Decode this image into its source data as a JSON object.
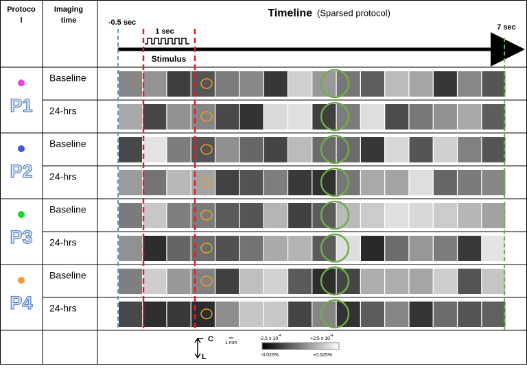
{
  "header": {
    "protocol": [
      "Protoco",
      "l"
    ],
    "imaging_time": [
      "Imaging",
      "time"
    ],
    "timeline": "Timeline",
    "timeline_note": "(Sparsed protocol)",
    "start_time": "-0.5 sec",
    "end_time": "7 sec",
    "stimulus_duration": "1 sec",
    "stimulus": "Stimulus"
  },
  "protocols": [
    {
      "label": "P1",
      "rows": [
        "Baseline",
        "24-hrs"
      ]
    },
    {
      "label": "P2",
      "rows": [
        "Baseline",
        "24-hrs"
      ]
    },
    {
      "label": "P3",
      "rows": [
        "Baseline",
        "24-hrs"
      ]
    },
    {
      "label": "P4",
      "rows": [
        "Baseline",
        "24-hrs"
      ]
    }
  ],
  "footer": {
    "axis_c": "C",
    "axis_l": "L",
    "scale": "1 mm",
    "colorbar_min": {
      "text": "-2.5 x 10",
      "exponent": "-4"
    },
    "colorbar_max": {
      "text": "+2.5 x 10",
      "exponent": "-4"
    },
    "colorbar_min_pct": "-0.025%",
    "colorbar_max_pct": "+0.025%"
  }
}
